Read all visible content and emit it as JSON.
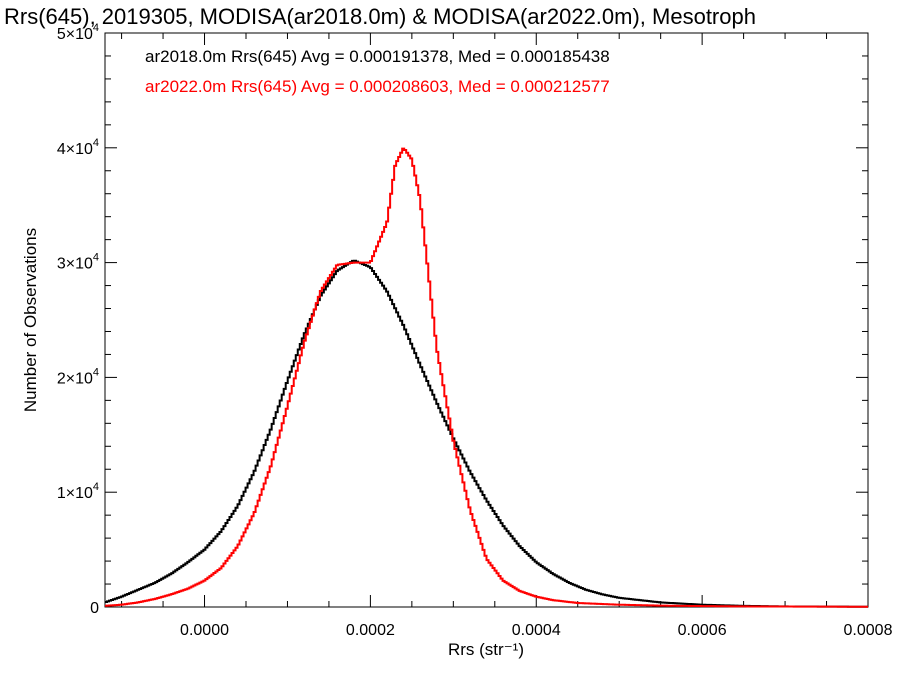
{
  "chart_data": {
    "type": "line",
    "title": "Rrs(645), 2019305, MODISA(ar2018.0m) & MODISA(ar2022.0m), Mesotroph",
    "xlabel": "Rrs (str⁻¹)",
    "ylabel": "Number of Observations",
    "xlim": [
      -0.00012,
      0.0008
    ],
    "ylim": [
      0,
      50000
    ],
    "xticks": [
      0.0,
      0.0002,
      0.0004,
      0.0006,
      0.0008
    ],
    "xtick_labels": [
      "0.0000",
      "0.0002",
      "0.0004",
      "0.0006",
      "0.0008"
    ],
    "yticks": [
      0,
      10000,
      20000,
      30000,
      40000,
      50000
    ],
    "ytick_labels": [
      {
        "mant": "0",
        "exp": ""
      },
      {
        "mant": "1×10",
        "exp": "4"
      },
      {
        "mant": "2×10",
        "exp": "4"
      },
      {
        "mant": "3×10",
        "exp": "4"
      },
      {
        "mant": "4×10",
        "exp": "4"
      },
      {
        "mant": "5×10",
        "exp": "4"
      }
    ],
    "grid": false,
    "series": [
      {
        "name": "ar2018.0m",
        "color": "#000000",
        "legend": "ar2018.0m Rrs(645) Avg = 0.000191378, Med = 0.000185438",
        "points": [
          [
            -0.00012,
            400
          ],
          [
            -0.0001,
            900
          ],
          [
            -8e-05,
            1500
          ],
          [
            -6e-05,
            2100
          ],
          [
            -4e-05,
            2900
          ],
          [
            -2e-05,
            3900
          ],
          [
            0.0,
            5000
          ],
          [
            2e-05,
            6600
          ],
          [
            4e-05,
            8800
          ],
          [
            6e-05,
            11800
          ],
          [
            8e-05,
            15500
          ],
          [
            0.0001,
            19700
          ],
          [
            0.00012,
            23700
          ],
          [
            0.00014,
            27100
          ],
          [
            0.00016,
            29300
          ],
          [
            0.00018,
            30200
          ],
          [
            0.0002,
            29600
          ],
          [
            0.00022,
            27500
          ],
          [
            0.00024,
            24500
          ],
          [
            0.00026,
            21100
          ],
          [
            0.00028,
            17800
          ],
          [
            0.0003,
            14700
          ],
          [
            0.00032,
            11800
          ],
          [
            0.00034,
            9300
          ],
          [
            0.00036,
            7100
          ],
          [
            0.00038,
            5300
          ],
          [
            0.0004,
            3900
          ],
          [
            0.00042,
            2900
          ],
          [
            0.00044,
            2100
          ],
          [
            0.00046,
            1500
          ],
          [
            0.00048,
            1100
          ],
          [
            0.0005,
            800
          ],
          [
            0.00055,
            400
          ],
          [
            0.0006,
            200
          ],
          [
            0.00065,
            100
          ],
          [
            0.0007,
            50
          ],
          [
            0.0008,
            20
          ]
        ]
      },
      {
        "name": "ar2022.0m",
        "color": "#ff0000",
        "legend": "ar2022.0m Rrs(645) Avg = 0.000208603, Med = 0.000212577",
        "points": [
          [
            -0.00012,
            100
          ],
          [
            -0.0001,
            200
          ],
          [
            -8e-05,
            400
          ],
          [
            -6e-05,
            700
          ],
          [
            -4e-05,
            1100
          ],
          [
            -2e-05,
            1600
          ],
          [
            0.0,
            2300
          ],
          [
            2e-05,
            3400
          ],
          [
            4e-05,
            5300
          ],
          [
            6e-05,
            8200
          ],
          [
            8e-05,
            12300
          ],
          [
            0.0001,
            17500
          ],
          [
            0.00012,
            23000
          ],
          [
            0.00014,
            27500
          ],
          [
            0.00016,
            29800
          ],
          [
            0.00018,
            30000
          ],
          [
            0.0002,
            30000
          ],
          [
            0.00022,
            33500
          ],
          [
            0.00023,
            38500
          ],
          [
            0.00024,
            40000
          ],
          [
            0.00025,
            39000
          ],
          [
            0.00026,
            35500
          ],
          [
            0.00027,
            29000
          ],
          [
            0.00028,
            22500
          ],
          [
            0.0003,
            14500
          ],
          [
            0.00032,
            8500
          ],
          [
            0.00034,
            4200
          ],
          [
            0.00036,
            2300
          ],
          [
            0.00038,
            1400
          ],
          [
            0.0004,
            900
          ],
          [
            0.00042,
            600
          ],
          [
            0.00045,
            350
          ],
          [
            0.0005,
            200
          ],
          [
            0.00055,
            120
          ],
          [
            0.0006,
            80
          ],
          [
            0.00065,
            50
          ],
          [
            0.0008,
            20
          ]
        ]
      }
    ]
  }
}
